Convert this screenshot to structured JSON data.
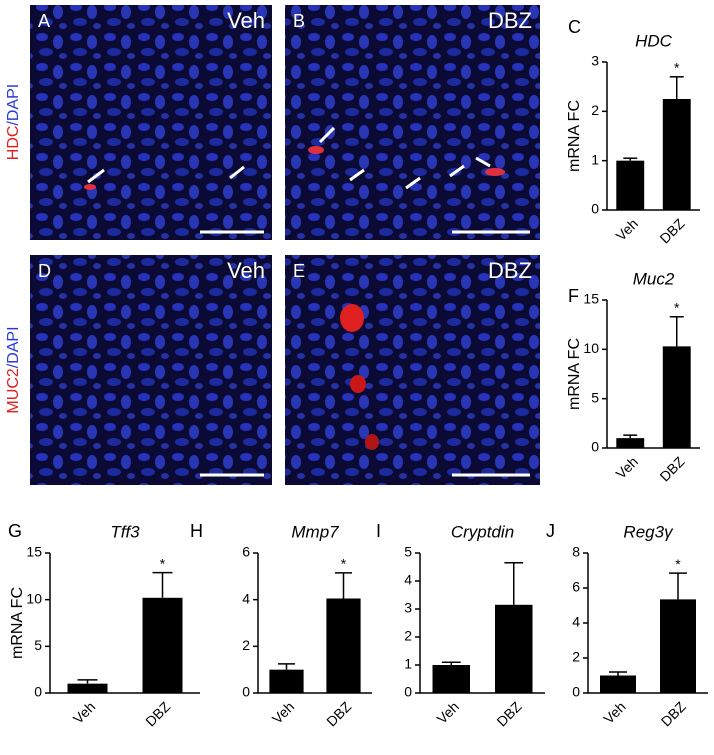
{
  "image_panels": [
    {
      "letter": "A",
      "label": "Veh"
    },
    {
      "letter": "B",
      "label": "DBZ"
    },
    {
      "letter": "D",
      "label": "Veh"
    },
    {
      "letter": "E",
      "label": "DBZ"
    }
  ],
  "stain_labels": [
    {
      "marker": "HDC",
      "counterstain": "/DAPI"
    },
    {
      "marker": "MUC2",
      "counterstain": "/DAPI"
    }
  ],
  "chart_data": [
    {
      "type": "bar",
      "panel": "C",
      "title": "HDC",
      "ylabel": "mRNA FC",
      "categories": [
        "Veh",
        "DBZ"
      ],
      "values": [
        1,
        2.25
      ],
      "errors": [
        0.05,
        0.45
      ],
      "significance": [
        null,
        "*"
      ],
      "color": "#000000",
      "ylim": [
        0,
        3
      ],
      "yticks": [
        0,
        1,
        2,
        3
      ]
    },
    {
      "type": "bar",
      "panel": "F",
      "title": "Muc2",
      "ylabel": "mRNA FC",
      "categories": [
        "Veh",
        "DBZ"
      ],
      "values": [
        1,
        10.3
      ],
      "errors": [
        0.3,
        3
      ],
      "significance": [
        null,
        "*"
      ],
      "color": "#000000",
      "ylim": [
        0,
        15
      ],
      "yticks": [
        0,
        5,
        10,
        15
      ]
    },
    {
      "type": "bar",
      "panel": "G",
      "title": "Tff3",
      "ylabel": "mRNA FC",
      "categories": [
        "Veh",
        "DBZ"
      ],
      "values": [
        1,
        10.2
      ],
      "errors": [
        0.4,
        2.7
      ],
      "significance": [
        null,
        "*"
      ],
      "color": "#000000",
      "ylim": [
        0,
        15
      ],
      "yticks": [
        0,
        5,
        10,
        15
      ]
    },
    {
      "type": "bar",
      "panel": "H",
      "title": "Mmp7",
      "categories": [
        "Veh",
        "DBZ"
      ],
      "values": [
        1,
        4.05
      ],
      "errors": [
        0.25,
        1.1
      ],
      "significance": [
        null,
        "*"
      ],
      "color": "#000000",
      "ylim": [
        0,
        6
      ],
      "yticks": [
        0,
        2,
        4,
        6
      ]
    },
    {
      "type": "bar",
      "panel": "I",
      "title": "Cryptdin",
      "categories": [
        "Veh",
        "DBZ"
      ],
      "values": [
        1,
        3.15
      ],
      "errors": [
        0.1,
        1.5
      ],
      "color": "#000000",
      "ylim": [
        0,
        5
      ],
      "yticks": [
        0,
        1,
        2,
        3,
        4,
        5
      ]
    },
    {
      "type": "bar",
      "panel": "J",
      "title": "Reg3γ",
      "categories": [
        "Veh",
        "DBZ"
      ],
      "values": [
        1,
        5.35
      ],
      "errors": [
        0.2,
        1.5
      ],
      "significance": [
        null,
        "*"
      ],
      "color": "#000000",
      "ylim": [
        0,
        8
      ],
      "yticks": [
        0,
        2,
        4,
        6,
        8
      ]
    }
  ]
}
